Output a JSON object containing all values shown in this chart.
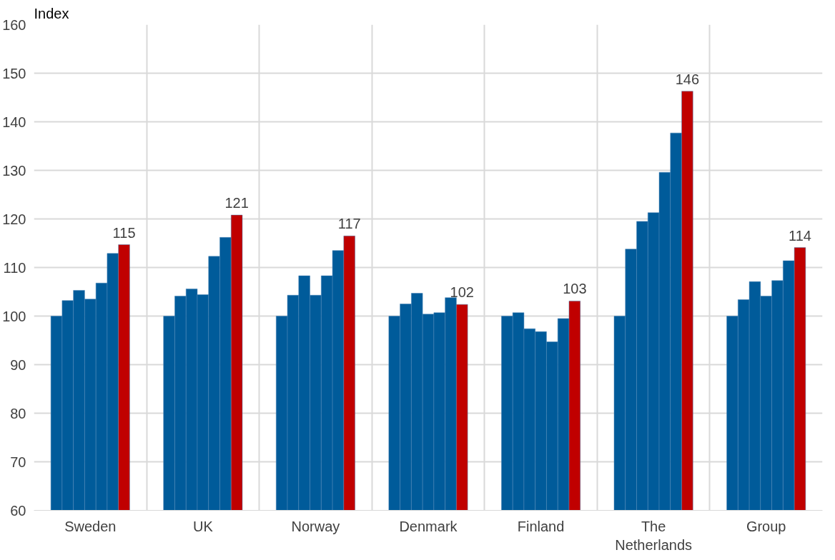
{
  "chart_data": {
    "type": "bar",
    "ylabel": "Index",
    "categories": [
      "Sweden",
      "UK",
      "Norway",
      "Denmark",
      "Finland",
      "The Netherlands",
      "Group"
    ],
    "series": [
      {
        "color": "#005b9a",
        "values": [
          100,
          100,
          100,
          100,
          100,
          100,
          100
        ]
      },
      {
        "color": "#005b9a",
        "values": [
          103.2,
          104.1,
          104.3,
          102.5,
          100.7,
          113.8,
          103.4
        ]
      },
      {
        "color": "#005b9a",
        "values": [
          105.3,
          105.6,
          108.3,
          104.7,
          97.4,
          119.5,
          107.1
        ]
      },
      {
        "color": "#005b9a",
        "values": [
          103.5,
          104.4,
          104.3,
          100.4,
          96.8,
          121.3,
          104.1
        ]
      },
      {
        "color": "#005b9a",
        "values": [
          106.8,
          112.3,
          108.3,
          100.7,
          94.7,
          129.6,
          107.3
        ]
      },
      {
        "color": "#005b9a",
        "values": [
          112.9,
          116.2,
          113.5,
          103.8,
          99.5,
          137.7,
          111.4
        ]
      },
      {
        "color": "#c00000",
        "values": [
          114.7,
          120.8,
          116.5,
          102.4,
          103.1,
          146.3,
          114.1
        ],
        "value_labels": [
          "115",
          "121",
          "117",
          "102",
          "103",
          "146",
          "114"
        ]
      }
    ],
    "ylim": [
      60,
      160
    ],
    "yticks": [
      60,
      70,
      80,
      90,
      100,
      110,
      120,
      130,
      140,
      150,
      160
    ],
    "grid": true
  }
}
